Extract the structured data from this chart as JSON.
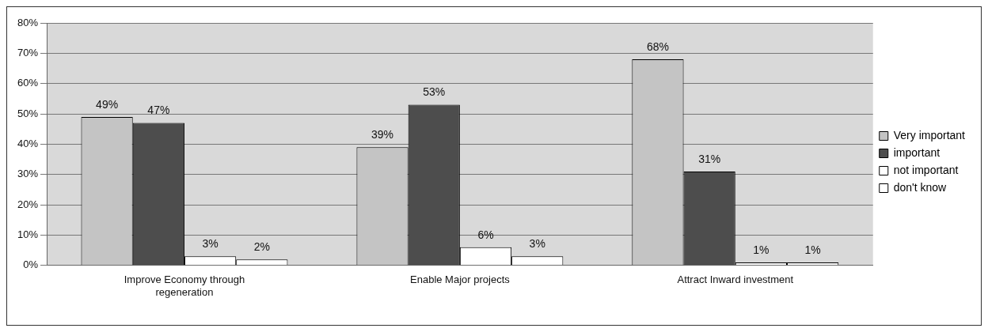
{
  "chart_data": {
    "type": "bar",
    "categories": [
      "Improve Economy through regeneration",
      "Enable Major projects",
      "Attract Inward investment"
    ],
    "series": [
      {
        "name": "Very important",
        "color": "#c4c4c4",
        "values": [
          49,
          39,
          68
        ],
        "value_labels": [
          "49%",
          "39%",
          "68%"
        ]
      },
      {
        "name": "important",
        "color": "#4d4d4d",
        "values": [
          47,
          53,
          31
        ],
        "value_labels": [
          "47%",
          "53%",
          "31%"
        ]
      },
      {
        "name": "not important",
        "color": "#ffffff",
        "values": [
          3,
          6,
          1
        ],
        "value_labels": [
          "3%",
          "6%",
          "1%"
        ]
      },
      {
        "name": "don't know",
        "color": "#ffffff",
        "values": [
          2,
          3,
          1
        ],
        "value_labels": [
          "2%",
          "3%",
          "1%"
        ]
      }
    ],
    "ylim": [
      0,
      80
    ],
    "yticks": [
      {
        "value": 0,
        "label": "0%"
      },
      {
        "value": 10,
        "label": "10%"
      },
      {
        "value": 20,
        "label": "20%"
      },
      {
        "value": 30,
        "label": "30%"
      },
      {
        "value": 40,
        "label": "40%"
      },
      {
        "value": 50,
        "label": "50%"
      },
      {
        "value": 60,
        "label": "60%"
      },
      {
        "value": 70,
        "label": "70%"
      },
      {
        "value": 80,
        "label": "80%"
      }
    ],
    "grid": "y",
    "legend": "right"
  }
}
